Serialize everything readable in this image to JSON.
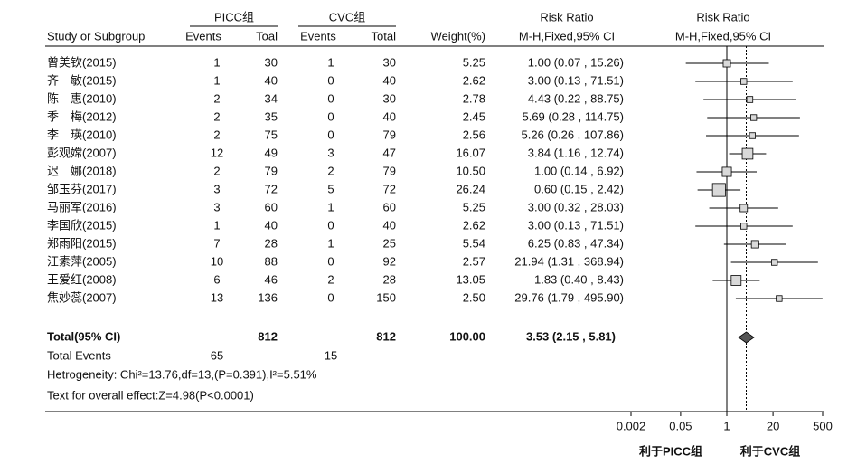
{
  "chart_data": {
    "type": "forest",
    "group_headers": {
      "picc": "PICC组",
      "cvc": "CVC组",
      "rr_table": "Risk Ratio",
      "rr_plot": "Risk Ratio"
    },
    "column_headers": {
      "study": "Study or Subgroup",
      "picc_events": "Events",
      "picc_total": "Toal",
      "cvc_events": "Events",
      "cvc_total": "Total",
      "weight": "Weight(%)",
      "rr_table": "M-H,Fixed,95% CI",
      "rr_plot": "M-H,Fixed,95% CI"
    },
    "studies": [
      {
        "name": "曾美钦(2015)",
        "picc_events": 1,
        "picc_total": 30,
        "cvc_events": 1,
        "cvc_total": 30,
        "weight": 5.25,
        "weight_label": "5.25",
        "rr": 1.0,
        "ci": [
          0.07,
          15.26
        ],
        "rr_label": "1.00 (0.07 , 15.26)"
      },
      {
        "name": "齐　敏(2015)",
        "picc_events": 1,
        "picc_total": 40,
        "cvc_events": 0,
        "cvc_total": 40,
        "weight": 2.62,
        "weight_label": "2.62",
        "rr": 3.0,
        "ci": [
          0.13,
          71.51
        ],
        "rr_label": "3.00 (0.13 , 71.51)"
      },
      {
        "name": "陈　惠(2010)",
        "picc_events": 2,
        "picc_total": 34,
        "cvc_events": 0,
        "cvc_total": 30,
        "weight": 2.78,
        "weight_label": "2.78",
        "rr": 4.43,
        "ci": [
          0.22,
          88.75
        ],
        "rr_label": "4.43 (0.22 , 88.75)"
      },
      {
        "name": "季　梅(2012)",
        "picc_events": 2,
        "picc_total": 35,
        "cvc_events": 0,
        "cvc_total": 40,
        "weight": 2.45,
        "weight_label": "2.45",
        "rr": 5.69,
        "ci": [
          0.28,
          114.75
        ],
        "rr_label": "5.69 (0.28 , 114.75)"
      },
      {
        "name": "李　瑛(2010)",
        "picc_events": 2,
        "picc_total": 75,
        "cvc_events": 0,
        "cvc_total": 79,
        "weight": 2.56,
        "weight_label": "2.56",
        "rr": 5.26,
        "ci": [
          0.26,
          107.86
        ],
        "rr_label": "5.26 (0.26 , 107.86)"
      },
      {
        "name": "彭观嫦(2007)",
        "picc_events": 12,
        "picc_total": 49,
        "cvc_events": 3,
        "cvc_total": 47,
        "weight": 16.07,
        "weight_label": "16.07",
        "rr": 3.84,
        "ci": [
          1.16,
          12.74
        ],
        "rr_label": "3.84 (1.16 , 12.74)"
      },
      {
        "name": "迟　娜(2018)",
        "picc_events": 2,
        "picc_total": 79,
        "cvc_events": 2,
        "cvc_total": 79,
        "weight": 10.5,
        "weight_label": "10.50",
        "rr": 1.0,
        "ci": [
          0.14,
          6.92
        ],
        "rr_label": "1.00 (0.14 , 6.92)"
      },
      {
        "name": "邹玉芬(2017)",
        "picc_events": 3,
        "picc_total": 72,
        "cvc_events": 5,
        "cvc_total": 72,
        "weight": 26.24,
        "weight_label": "26.24",
        "rr": 0.6,
        "ci": [
          0.15,
          2.42
        ],
        "rr_label": "0.60 (0.15 , 2.42)"
      },
      {
        "name": "马丽军(2016)",
        "picc_events": 3,
        "picc_total": 60,
        "cvc_events": 1,
        "cvc_total": 60,
        "weight": 5.25,
        "weight_label": "5.25",
        "rr": 3.0,
        "ci": [
          0.32,
          28.03
        ],
        "rr_label": "3.00 (0.32 , 28.03)"
      },
      {
        "name": "李国欣(2015)",
        "picc_events": 1,
        "picc_total": 40,
        "cvc_events": 0,
        "cvc_total": 40,
        "weight": 2.62,
        "weight_label": "2.62",
        "rr": 3.0,
        "ci": [
          0.13,
          71.51
        ],
        "rr_label": "3.00 (0.13 , 71.51)"
      },
      {
        "name": "郑雨阳(2015)",
        "picc_events": 7,
        "picc_total": 28,
        "cvc_events": 1,
        "cvc_total": 25,
        "weight": 5.54,
        "weight_label": "5.54",
        "rr": 6.25,
        "ci": [
          0.83,
          47.34
        ],
        "rr_label": "6.25 (0.83 , 47.34)"
      },
      {
        "name": "汪素萍(2005)",
        "picc_events": 10,
        "picc_total": 88,
        "cvc_events": 0,
        "cvc_total": 92,
        "weight": 2.57,
        "weight_label": "2.57",
        "rr": 21.94,
        "ci": [
          1.31,
          368.94
        ],
        "rr_label": "21.94 (1.31 , 368.94)"
      },
      {
        "name": "王爱红(2008)",
        "picc_events": 6,
        "picc_total": 46,
        "cvc_events": 2,
        "cvc_total": 28,
        "weight": 13.05,
        "weight_label": "13.05",
        "rr": 1.83,
        "ci": [
          0.4,
          8.43
        ],
        "rr_label": "1.83 (0.40 , 8.43)"
      },
      {
        "name": "焦妙蕊(2007)",
        "picc_events": 13,
        "picc_total": 136,
        "cvc_events": 0,
        "cvc_total": 150,
        "weight": 2.5,
        "weight_label": "2.50",
        "rr": 29.76,
        "ci": [
          1.79,
          495.9
        ],
        "rr_label": "29.76 (1.79 , 495.90)"
      }
    ],
    "total": {
      "name": "Total(95% CI)",
      "picc_total": 812,
      "cvc_total": 812,
      "weight_label": "100.00",
      "rr": 3.53,
      "ci": [
        2.15,
        5.81
      ],
      "rr_label": "3.53 (2.15 , 5.81)"
    },
    "total_events": {
      "name": "Total Events",
      "picc": 65,
      "cvc": 15
    },
    "heterogeneity": "Hetrogeneity: Chi²=13.76,df=13,(P=0.391),I²=5.51%",
    "overall_effect": "Text for overall effect:Z=4.98(P<0.0001)",
    "xlim": [
      0.002,
      500
    ],
    "xticks": [
      0.002,
      0.05,
      1,
      20,
      500
    ],
    "log_scale": true,
    "favours_left": "利于PICC组",
    "favours_right": "利于CVC组",
    "box_color": "#d9d9d9",
    "diamond_color": "#555555"
  }
}
